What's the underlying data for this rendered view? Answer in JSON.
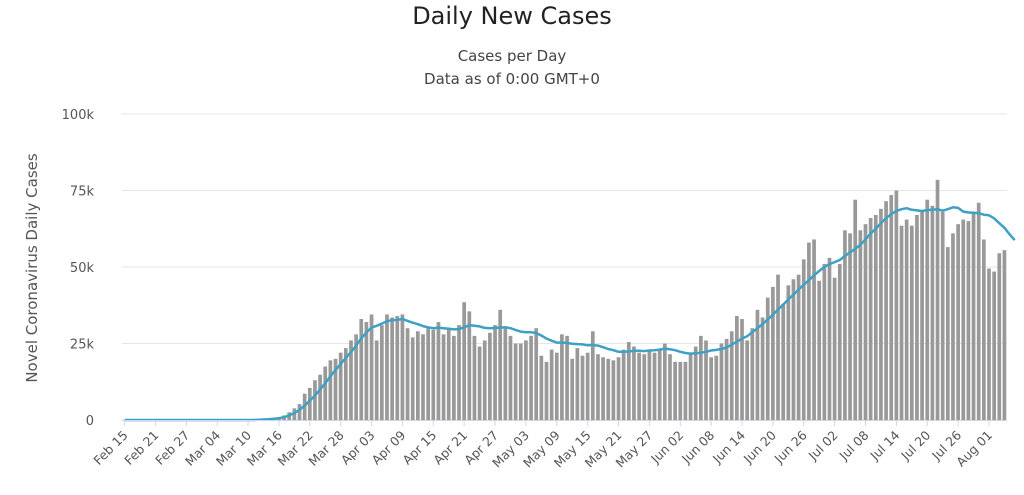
{
  "chart_data": {
    "type": "bar",
    "title": "Daily New Cases",
    "subtitle_lines": [
      "Cases per Day",
      "Data as of 0:00 GMT+0"
    ],
    "ylabel": "Novel Coronavirus Daily Cases",
    "ylim": [
      0,
      100000
    ],
    "y_ticks": [
      {
        "value": 0,
        "label": "0"
      },
      {
        "value": 25000,
        "label": "25k"
      },
      {
        "value": 50000,
        "label": "50k"
      },
      {
        "value": 75000,
        "label": "75k"
      },
      {
        "value": 100000,
        "label": "100k"
      }
    ],
    "x_tick_labels": [
      "Feb 15",
      "Feb 21",
      "Feb 27",
      "Mar 04",
      "Mar 10",
      "Mar 16",
      "Mar 22",
      "Mar 28",
      "Apr 03",
      "Apr 09",
      "Apr 15",
      "Apr 21",
      "Apr 27",
      "May 03",
      "May 09",
      "May 15",
      "May 21",
      "May 27",
      "Jun 02",
      "Jun 08",
      "Jun 14",
      "Jun 20",
      "Jun 26",
      "Jul 02",
      "Jul 08",
      "Jul 14",
      "Jul 20",
      "Jul 26",
      "Aug 01"
    ],
    "x_tick_every": 6,
    "grid": true,
    "colors": {
      "bars": "#999999",
      "line": "#3ea0c4",
      "grid": "#e6e6e6",
      "axis": "#ccd6eb"
    },
    "series": [
      {
        "type": "bar",
        "values": [
          0,
          0,
          0,
          0,
          0,
          0,
          0,
          0,
          0,
          0,
          0,
          0,
          0,
          0,
          0,
          0,
          0,
          0,
          0,
          0,
          0,
          0,
          0,
          0,
          0,
          0,
          100,
          200,
          300,
          500,
          700,
          1500,
          2500,
          3800,
          5200,
          8600,
          10500,
          13000,
          14800,
          17500,
          19500,
          20000,
          22000,
          23500,
          26000,
          28000,
          33000,
          32000,
          34500,
          26000,
          31000,
          34500,
          33500,
          34000,
          34500,
          30000,
          27000,
          29000,
          28000,
          30000,
          29500,
          32000,
          28000,
          29500,
          27500,
          31000,
          38500,
          35500,
          27500,
          24000,
          26000,
          28500,
          31000,
          36000,
          30500,
          27500,
          25000,
          25000,
          26000,
          27500,
          30000,
          21000,
          19000,
          23000,
          22000,
          28000,
          27500,
          20000,
          23500,
          21000,
          22000,
          29000,
          21500,
          20500,
          20000,
          19500,
          20500,
          23000,
          25500,
          24000,
          22000,
          21500,
          23000,
          22000,
          23000,
          25000,
          21500,
          19000,
          19000,
          19000,
          22000,
          24000,
          27500,
          26000,
          20500,
          21000,
          25000,
          26500,
          29000,
          34000,
          33000,
          26000,
          30000,
          36000,
          33500,
          40000,
          43500,
          47500,
          38000,
          44000,
          46000,
          47500,
          52500,
          58000,
          59000,
          45500,
          51000,
          53000,
          46500,
          51000,
          62000,
          61000,
          72000,
          62000,
          64000,
          66000,
          67000,
          69000,
          71500,
          73500,
          75000,
          63500,
          65500,
          63500,
          67000,
          68500,
          72000,
          70000,
          78500,
          68000,
          56500,
          61000,
          64000,
          65500,
          65000,
          68000,
          71000,
          59000,
          49500,
          48500,
          54500,
          55500
        ],
        "cumulative_label_unused": ""
      },
      {
        "type": "line",
        "values": [
          0,
          0,
          0,
          0,
          0,
          0,
          0,
          0,
          0,
          0,
          0,
          0,
          0,
          0,
          0,
          0,
          0,
          0,
          0,
          0,
          0,
          0,
          0,
          0,
          0,
          0,
          100,
          150,
          250,
          400,
          600,
          900,
          1500,
          2300,
          3300,
          4700,
          6300,
          8000,
          10000,
          12000,
          14300,
          16300,
          18300,
          20300,
          22200,
          24300,
          26700,
          28600,
          30200,
          30800,
          31500,
          32300,
          32600,
          32700,
          33000,
          32400,
          31800,
          31300,
          30700,
          30300,
          30000,
          30200,
          30000,
          29800,
          29600,
          29700,
          30300,
          31000,
          30800,
          30600,
          30100,
          30000,
          30100,
          30200,
          30300,
          30000,
          29400,
          28900,
          28700,
          28700,
          28400,
          27600,
          26600,
          25900,
          25300,
          25300,
          25200,
          24900,
          24800,
          24700,
          24400,
          24500,
          24300,
          23800,
          23200,
          22800,
          22300,
          22300,
          22400,
          22600,
          22600,
          22500,
          22700,
          22800,
          23000,
          23300,
          23100,
          22800,
          22300,
          21900,
          21700,
          21800,
          22000,
          22300,
          22700,
          22900,
          23200,
          23700,
          24600,
          25600,
          26600,
          27400,
          28700,
          30000,
          31400,
          32800,
          34400,
          36100,
          37700,
          39400,
          41000,
          42600,
          44200,
          45700,
          47300,
          48700,
          50000,
          50900,
          51600,
          52300,
          53600,
          54800,
          55900,
          57300,
          59000,
          60900,
          62500,
          64300,
          66000,
          67300,
          68300,
          68900,
          69200,
          68700,
          68500,
          68300,
          68600,
          68700,
          68900,
          68400,
          68900,
          69500,
          69300,
          68100,
          67800,
          67700,
          67600,
          67100,
          66900,
          65900,
          64300,
          62800,
          60700,
          58800
        ]
      }
    ]
  }
}
